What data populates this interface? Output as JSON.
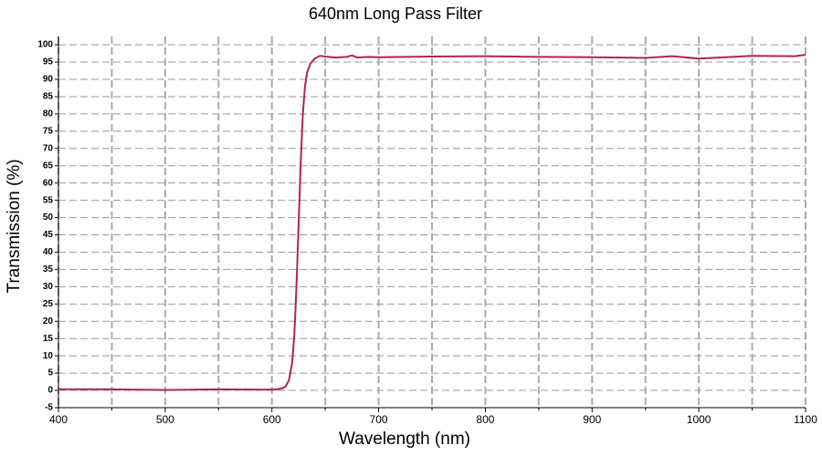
{
  "chart_data": {
    "type": "line",
    "title": "640nm Long Pass Filter",
    "x_label": "Wavelength (nm)",
    "y_label": "Transmission (%)",
    "series": [
      {
        "name": "Transmission",
        "color": "#b0245a",
        "x": [
          400,
          450,
          500,
          550,
          600,
          605,
          610,
          613,
          616,
          619,
          621,
          623,
          625,
          627,
          629,
          631,
          633,
          636,
          640,
          645,
          650,
          660,
          670,
          675,
          680,
          690,
          700,
          750,
          800,
          850,
          900,
          950,
          975,
          1000,
          1050,
          1090,
          1100
        ],
        "values": [
          0.3,
          0.3,
          0.1,
          0.3,
          0.2,
          0.3,
          0.6,
          1.2,
          3,
          8,
          16,
          30,
          48,
          66,
          80,
          88,
          92,
          94.5,
          96,
          96.8,
          96.6,
          96.3,
          96.5,
          96.9,
          96.3,
          96.5,
          96.4,
          96.6,
          96.7,
          96.5,
          96.4,
          96.2,
          96.7,
          96.0,
          96.8,
          96.7,
          97.1
        ]
      }
    ],
    "xlim": [
      400,
      1100
    ],
    "xticks": [
      400,
      500,
      600,
      700,
      800,
      900,
      1000,
      1100
    ],
    "x_minor_ticks": [
      450,
      550,
      650,
      750,
      850,
      950,
      1050
    ],
    "ylim": [
      -5,
      102.4
    ],
    "yticks": [
      -5,
      0,
      5,
      10,
      15,
      20,
      25,
      30,
      35,
      40,
      45,
      50,
      55,
      60,
      65,
      70,
      75,
      80,
      85,
      90,
      95,
      100
    ],
    "grid": true
  }
}
